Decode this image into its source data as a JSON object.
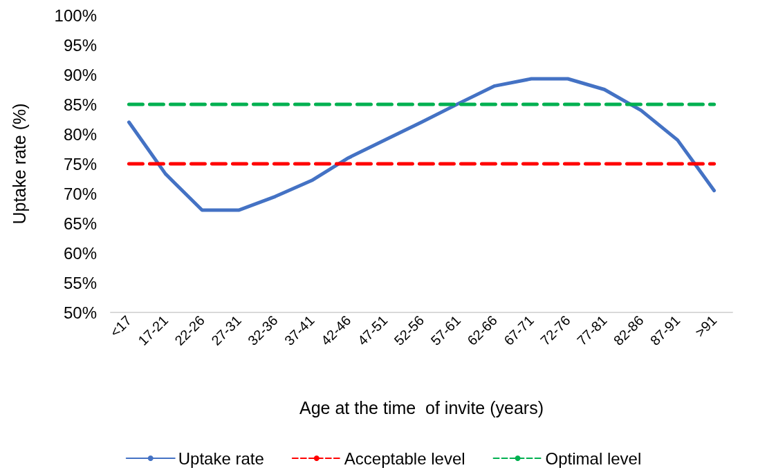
{
  "chart_data": {
    "type": "line",
    "xlabel": "Age at the time  of invite (years)",
    "ylabel": "Uptake rate (%)",
    "categories": [
      "<17",
      "17-21",
      "22-26",
      "27-31",
      "32-36",
      "37-41",
      "42-46",
      "47-51",
      "52-56",
      "57-61",
      "62-66",
      "67-71",
      "72-76",
      "77-81",
      "82-86",
      "87-91",
      ">91"
    ],
    "series": [
      {
        "name": "Uptake rate",
        "color": "#4472c4",
        "line_style": "solid",
        "values": [
          82,
          73.3,
          67.2,
          67.2,
          69.5,
          72.2,
          76,
          79,
          82,
          85.1,
          88.1,
          89.3,
          89.3,
          87.5,
          84,
          79,
          70.5
        ]
      },
      {
        "name": "Acceptable level",
        "color": "#ff0000",
        "line_style": "dashed",
        "values": [
          75,
          75,
          75,
          75,
          75,
          75,
          75,
          75,
          75,
          75,
          75,
          75,
          75,
          75,
          75,
          75,
          75
        ]
      },
      {
        "name": "Optimal level",
        "color": "#00b050",
        "line_style": "dashed",
        "values": [
          85,
          85,
          85,
          85,
          85,
          85,
          85,
          85,
          85,
          85,
          85,
          85,
          85,
          85,
          85,
          85,
          85
        ]
      }
    ],
    "ylim": [
      50,
      100
    ],
    "yticks": [
      {
        "value": 50,
        "label": "50%"
      },
      {
        "value": 55,
        "label": "55%"
      },
      {
        "value": 60,
        "label": "60%"
      },
      {
        "value": 65,
        "label": "65%"
      },
      {
        "value": 70,
        "label": "70%"
      },
      {
        "value": 75,
        "label": "75%"
      },
      {
        "value": 80,
        "label": "80%"
      },
      {
        "value": 85,
        "label": "85%"
      },
      {
        "value": 90,
        "label": "90%"
      },
      {
        "value": 95,
        "label": "95%"
      },
      {
        "value": 100,
        "label": "100%"
      }
    ],
    "grid": false,
    "legend": "bottom",
    "marker": "none"
  }
}
